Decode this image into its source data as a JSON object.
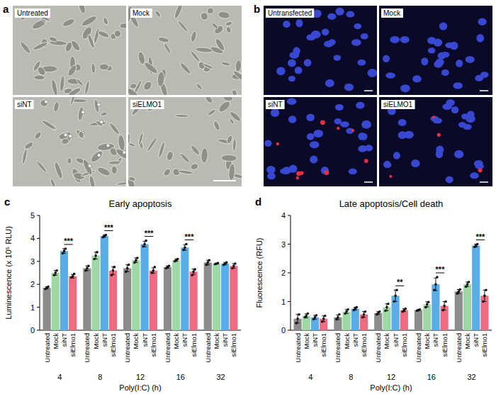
{
  "images": [
    {
      "panel": "a",
      "labels": [
        "Untreated",
        "Mock",
        "siNT",
        "siELMO1"
      ]
    },
    {
      "panel": "b",
      "labels": [
        "Untransfected",
        "Mock",
        "siNT",
        "siELMO1"
      ]
    }
  ],
  "chart_data": [
    {
      "type": "bar",
      "panel": "c",
      "title": "Early apoptosis",
      "x_label": "Poly(I:C) (h)",
      "y_label": "Luminescence (x 10⁵ RLU)",
      "categories": [
        "4",
        "8",
        "12",
        "16",
        "32"
      ],
      "ylim": [
        0,
        5
      ],
      "yticks": [
        0,
        1,
        2,
        3,
        4,
        5
      ],
      "grid": false,
      "series": [
        {
          "name": "Untreated",
          "color": "#8c8c8c",
          "values": [
            1.85,
            2.7,
            2.7,
            2.75,
            2.95
          ],
          "errors": [
            0.05,
            0.1,
            0.15,
            0.05,
            0.1
          ],
          "points": [
            [
              1.8,
              1.85,
              1.9
            ],
            [
              2.6,
              2.7,
              2.8
            ],
            [
              2.55,
              2.7,
              2.85
            ],
            [
              2.7,
              2.75,
              2.8
            ],
            [
              2.85,
              2.95,
              3.05
            ]
          ]
        },
        {
          "name": "Mock",
          "color": "#9ed9a5",
          "values": [
            2.5,
            3.25,
            3.05,
            3.05,
            2.9
          ],
          "errors": [
            0.1,
            0.15,
            0.1,
            0.05,
            0.02
          ],
          "points": [
            [
              2.4,
              2.5,
              2.6
            ],
            [
              3.1,
              3.25,
              3.4
            ],
            [
              2.95,
              3.05,
              3.15
            ],
            [
              3.0,
              3.05,
              3.1
            ],
            [
              2.88,
              2.9,
              2.92
            ]
          ]
        },
        {
          "name": "siNT",
          "color": "#5aaee8",
          "values": [
            3.45,
            4.1,
            3.75,
            3.6,
            2.9
          ],
          "errors": [
            0.1,
            0.05,
            0.12,
            0.12,
            0.05
          ],
          "points": [
            [
              3.35,
              3.45,
              3.55
            ],
            [
              4.05,
              4.1,
              4.15
            ],
            [
              3.65,
              3.75,
              3.9
            ],
            [
              3.5,
              3.6,
              3.75
            ],
            [
              2.85,
              2.9,
              2.95
            ]
          ]
        },
        {
          "name": "siElmo1",
          "color": "#ee6b80",
          "values": [
            2.35,
            2.6,
            2.6,
            2.55,
            2.8
          ],
          "errors": [
            0.08,
            0.17,
            0.12,
            0.12,
            0.1
          ],
          "points": [
            [
              2.3,
              2.35,
              2.45
            ],
            [
              2.4,
              2.6,
              2.75
            ],
            [
              2.5,
              2.6,
              2.75
            ],
            [
              2.4,
              2.55,
              2.65
            ],
            [
              2.7,
              2.8,
              2.9
            ]
          ]
        }
      ],
      "annotations": [
        {
          "category": "4",
          "text": "***"
        },
        {
          "category": "8",
          "text": "***"
        },
        {
          "category": "12",
          "text": "***"
        },
        {
          "category": "16",
          "text": "***"
        }
      ]
    },
    {
      "type": "bar",
      "panel": "d",
      "title": "Late apoptosis/Cell death",
      "x_label": "Poly(I:C) (h)",
      "y_label": "Fluorescence (RFU)",
      "categories": [
        "4",
        "8",
        "12",
        "16",
        "32"
      ],
      "ylim": [
        0,
        4
      ],
      "yticks": [
        0,
        1,
        2,
        3,
        4
      ],
      "grid": false,
      "series": [
        {
          "name": "Untreated",
          "color": "#8c8c8c",
          "values": [
            0.4,
            0.45,
            0.6,
            0.7,
            1.35
          ],
          "errors": [
            0.15,
            0.08,
            0.05,
            0.02,
            0.07
          ],
          "points": [
            [
              0.25,
              0.4,
              0.55
            ],
            [
              0.38,
              0.45,
              0.55
            ],
            [
              0.55,
              0.6,
              0.65
            ],
            [
              0.68,
              0.7,
              0.72
            ],
            [
              1.28,
              1.35,
              1.42
            ]
          ]
        },
        {
          "name": "Mock",
          "color": "#9ed9a5",
          "values": [
            0.5,
            0.65,
            0.8,
            0.9,
            1.6
          ],
          "errors": [
            0.07,
            0.07,
            0.12,
            0.09,
            0.08
          ],
          "points": [
            [
              0.45,
              0.5,
              0.58
            ],
            [
              0.58,
              0.65,
              0.72
            ],
            [
              0.68,
              0.8,
              0.92
            ],
            [
              0.8,
              0.9,
              0.98
            ],
            [
              1.52,
              1.6,
              1.68
            ]
          ]
        },
        {
          "name": "siNT",
          "color": "#5aaee8",
          "values": [
            0.45,
            0.75,
            1.2,
            1.6,
            2.95
          ],
          "errors": [
            0.07,
            0.05,
            0.2,
            0.22,
            0.05
          ],
          "points": [
            [
              0.38,
              0.45,
              0.52
            ],
            [
              0.7,
              0.75,
              0.8
            ],
            [
              1.0,
              1.2,
              1.4
            ],
            [
              1.4,
              1.6,
              1.85
            ],
            [
              2.9,
              2.95,
              3.0
            ]
          ]
        },
        {
          "name": "siElmo1",
          "color": "#ee6b80",
          "values": [
            0.4,
            0.55,
            0.7,
            0.85,
            1.2
          ],
          "errors": [
            0.1,
            0.1,
            0.05,
            0.15,
            0.2
          ],
          "points": [
            [
              0.3,
              0.4,
              0.5
            ],
            [
              0.45,
              0.55,
              0.65
            ],
            [
              0.65,
              0.7,
              0.75
            ],
            [
              0.7,
              0.85,
              1.0
            ],
            [
              1.0,
              1.2,
              1.4
            ]
          ]
        }
      ],
      "annotations": [
        {
          "category": "12",
          "text": "**"
        },
        {
          "category": "16",
          "text": "***"
        },
        {
          "category": "32",
          "text": "***"
        }
      ]
    }
  ]
}
